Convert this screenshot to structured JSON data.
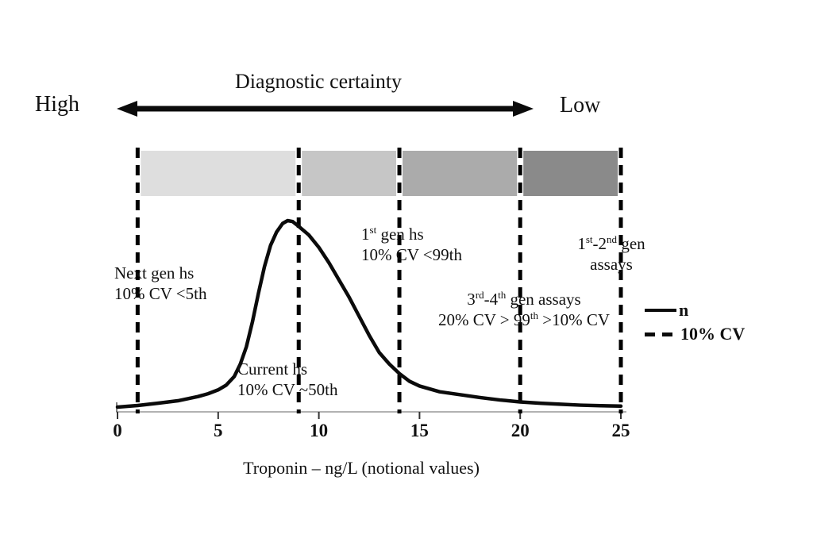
{
  "header": {
    "title": "Diagnostic certainty",
    "high_label": "High",
    "low_label": "Low"
  },
  "legend": {
    "n_label": "n",
    "cv_label": "10% CV"
  },
  "x_axis": {
    "label": "Troponin – ng/L (notional values)"
  },
  "annotations": {
    "next_gen": {
      "l1": "Next gen hs",
      "l2": "10% CV <5th"
    },
    "current_hs": {
      "l1": "Current hs",
      "l2": "10% CV ~50th"
    },
    "gen1_hs": {
      "l1a": "1",
      "l1b": "st",
      "l1c": " gen hs",
      "l2": "10% CV <99th"
    },
    "gen34": {
      "l1a": "3",
      "l1b": "rd",
      "l1c": "-4",
      "l1d": "th",
      "l1e": " gen assays",
      "l2a": "20% CV > 99",
      "l2b": "th",
      "l2c": " >10% CV"
    },
    "gen12": {
      "l1a": "1",
      "l1b": "st",
      "l1c": "-2",
      "l1d": "nd",
      "l1e": " gen",
      "l2": "assays"
    }
  },
  "chart_data": {
    "type": "line",
    "title": "Diagnostic certainty",
    "xlabel": "Troponin – ng/L (notional values)",
    "ylabel": "",
    "xlim": [
      0,
      25
    ],
    "x_ticks": [
      0,
      5,
      10,
      15,
      20,
      25
    ],
    "grid": false,
    "legend_position": "right",
    "series": [
      {
        "name": "n",
        "style": "solid",
        "color": "#0b0b0b",
        "y_unit": "relative frequency, normalized 0-1",
        "points": [
          [
            0,
            0.025
          ],
          [
            1,
            0.033
          ],
          [
            2,
            0.045
          ],
          [
            3,
            0.058
          ],
          [
            4,
            0.08
          ],
          [
            4.5,
            0.095
          ],
          [
            5,
            0.115
          ],
          [
            5.4,
            0.14
          ],
          [
            5.8,
            0.185
          ],
          [
            6.1,
            0.25
          ],
          [
            6.4,
            0.34
          ],
          [
            6.7,
            0.47
          ],
          [
            7,
            0.62
          ],
          [
            7.3,
            0.76
          ],
          [
            7.6,
            0.87
          ],
          [
            7.9,
            0.94
          ],
          [
            8.2,
            0.985
          ],
          [
            8.45,
            1
          ],
          [
            8.7,
            0.995
          ],
          [
            9,
            0.97
          ],
          [
            9.5,
            0.925
          ],
          [
            10,
            0.86
          ],
          [
            10.5,
            0.78
          ],
          [
            11,
            0.69
          ],
          [
            11.5,
            0.6
          ],
          [
            12,
            0.5
          ],
          [
            12.5,
            0.4
          ],
          [
            13,
            0.31
          ],
          [
            13.5,
            0.25
          ],
          [
            14,
            0.2
          ],
          [
            14.5,
            0.16
          ],
          [
            15,
            0.135
          ],
          [
            15.5,
            0.12
          ],
          [
            16,
            0.105
          ],
          [
            17,
            0.09
          ],
          [
            18,
            0.075
          ],
          [
            19,
            0.062
          ],
          [
            20,
            0.052
          ],
          [
            21,
            0.045
          ],
          [
            22,
            0.04
          ],
          [
            23,
            0.035
          ],
          [
            24,
            0.032
          ],
          [
            25,
            0.03
          ]
        ]
      }
    ],
    "cv_thresholds": {
      "name": "10% CV",
      "style": "dashed",
      "color": "#000000",
      "x_values": [
        1,
        9,
        14,
        20,
        25
      ]
    },
    "certainty_bands": [
      {
        "x_range": [
          1,
          9
        ],
        "color": "#dedede",
        "assay": "Next gen hs 10% CV <5th"
      },
      {
        "x_range": [
          9,
          14
        ],
        "color": "#c6c6c6",
        "assay": "Current hs 10% CV ~50th"
      },
      {
        "x_range": [
          14,
          20
        ],
        "color": "#ababab",
        "assay": "1st gen hs 10% CV <99th / 3rd-4th gen assays 20% CV > 99th >10% CV"
      },
      {
        "x_range": [
          20,
          25
        ],
        "color": "#8a8a8a",
        "assay": "1st-2nd gen assays"
      }
    ],
    "annotations": [
      {
        "text": "Next gen hs 10% CV <5th",
        "x": 2.5
      },
      {
        "text": "Current hs 10% CV ~50th",
        "x": 9
      },
      {
        "text": "1st gen hs 10% CV <99th",
        "x": 14.5
      },
      {
        "text": "3rd-4th gen assays 20% CV > 99th >10% CV",
        "x": 20
      },
      {
        "text": "1st-2nd gen assays",
        "x": 24.5
      }
    ]
  }
}
